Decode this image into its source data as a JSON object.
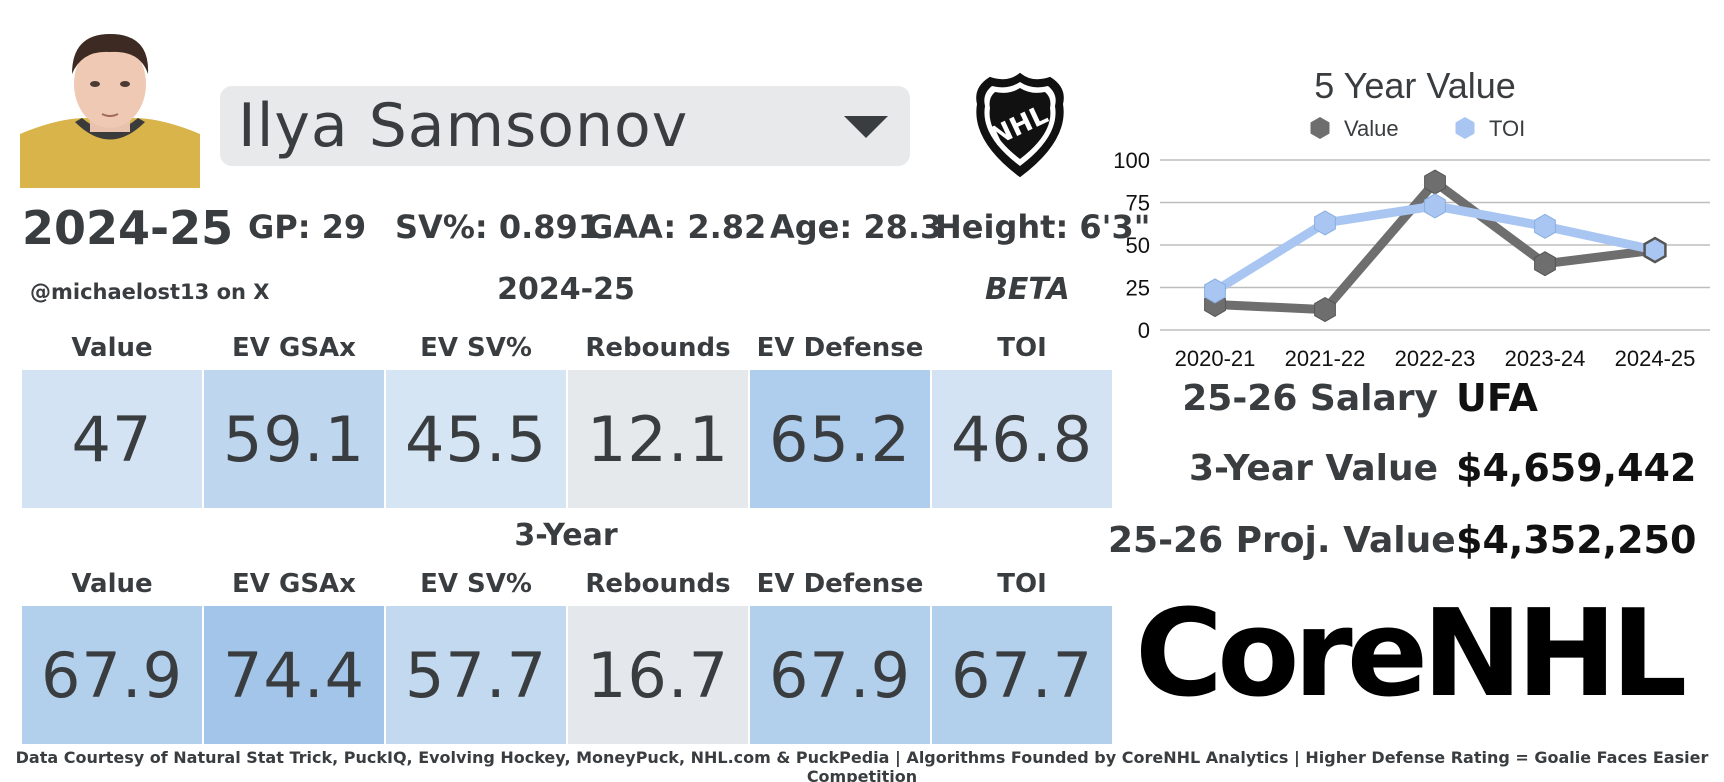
{
  "player": {
    "name": "Ilya Samsonov",
    "season": "2024-25",
    "gp": "GP: 29",
    "sv_pct": "SV%: 0.891",
    "gaa": "GAA: 2.82",
    "age": "Age: 28.3",
    "height": "Height: 6'3\""
  },
  "handle": "@michaelost13 on X",
  "sections": {
    "current_title": "2024-25",
    "three_year_title": "3-Year",
    "beta": "BETA"
  },
  "metric_headers": [
    "Value",
    "EV GSAx",
    "EV SV%",
    "Rebounds",
    "EV Defense",
    "TOI"
  ],
  "current_metrics": [
    {
      "value": "47",
      "color": "#d3e3f3"
    },
    {
      "value": "59.1",
      "color": "#bed6ee"
    },
    {
      "value": "45.5",
      "color": "#d6e5f4"
    },
    {
      "value": "12.1",
      "color": "#e6e9ec"
    },
    {
      "value": "65.2",
      "color": "#afcdec"
    },
    {
      "value": "46.8",
      "color": "#d3e3f3"
    }
  ],
  "three_year_metrics": [
    {
      "value": "67.9",
      "color": "#b2cfec"
    },
    {
      "value": "74.4",
      "color": "#a3c5e9"
    },
    {
      "value": "57.7",
      "color": "#c3d9ef"
    },
    {
      "value": "16.7",
      "color": "#e4e8ed"
    },
    {
      "value": "67.9",
      "color": "#b2cfec"
    },
    {
      "value": "67.7",
      "color": "#b2cfec"
    }
  ],
  "contract": {
    "salary_label": "25-26 Salary",
    "salary_value": "UFA",
    "three_year_label": "3-Year Value",
    "three_year_value": "$4,659,442",
    "proj_label": "25-26 Proj. Value",
    "proj_value": "$4,352,250"
  },
  "brand": "CoreNHL",
  "nhl_logo_text": "NHL",
  "footer": "Data Courtesy of Natural Stat Trick, PuckIQ, Evolving Hockey, MoneyPuck, NHL.com & PuckPedia | Algorithms Founded by CoreNHL Analytics | Higher Defense Rating = Goalie Faces Easier Competition",
  "chart_data": {
    "type": "line",
    "title": "5 Year Value",
    "categories": [
      "2020-21",
      "2021-22",
      "2022-23",
      "2023-24",
      "2024-25"
    ],
    "series": [
      {
        "name": "Value",
        "values": [
          15,
          12,
          87,
          39,
          47
        ],
        "color": "#6e6e6e"
      },
      {
        "name": "TOI",
        "values": [
          23,
          63,
          73,
          61,
          47
        ],
        "color": "#a9c6f2"
      }
    ],
    "ylim": [
      0,
      100
    ],
    "yticks": [
      0,
      25,
      50,
      75,
      100
    ],
    "grid": true,
    "legend": "top"
  }
}
